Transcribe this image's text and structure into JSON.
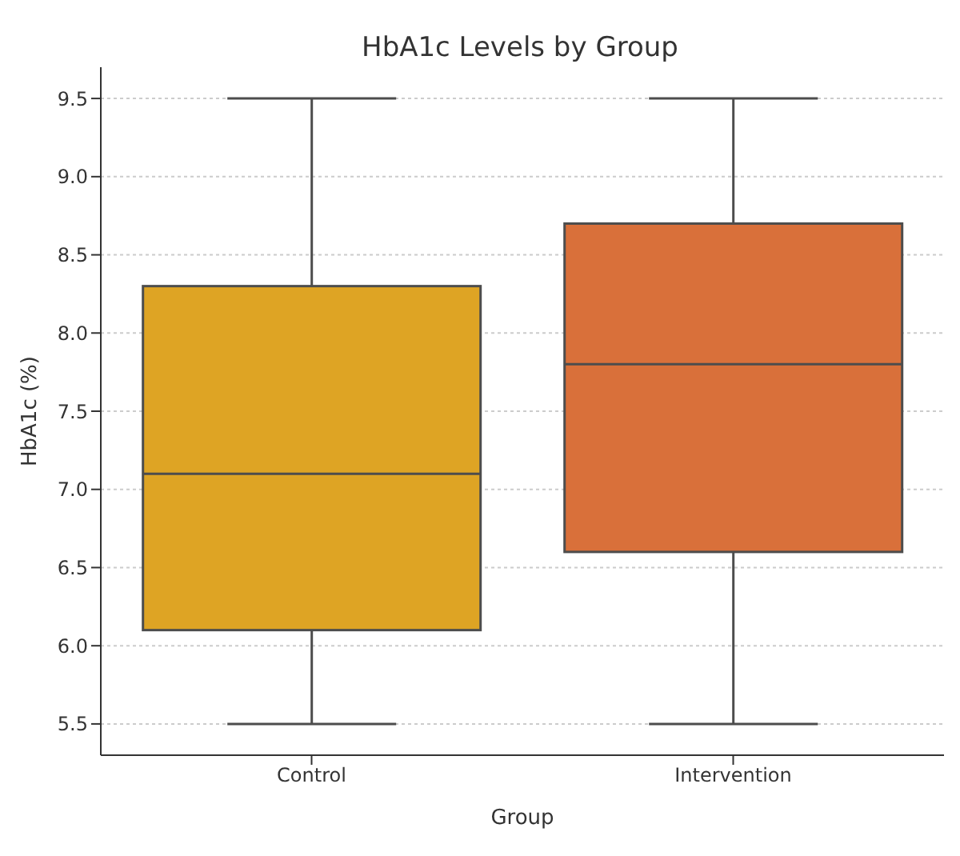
{
  "chart_data": {
    "type": "box",
    "title": "HbA1c Levels by Group",
    "xlabel": "Group",
    "ylabel": "HbA1c (%)",
    "categories": [
      "Control",
      "Intervention"
    ],
    "colors": [
      "#dea424",
      "#d9703a"
    ],
    "boxes": [
      {
        "low": 5.5,
        "q1": 6.1,
        "median": 7.1,
        "q3": 8.3,
        "high": 9.5
      },
      {
        "low": 5.5,
        "q1": 6.6,
        "median": 7.8,
        "q3": 8.7,
        "high": 9.5
      }
    ],
    "ylim": [
      5.3,
      9.7
    ],
    "yticks": [
      5.5,
      {
        "value": 6,
        "label": "6.0"
      },
      6.5,
      {
        "value": 7,
        "label": "7.0"
      },
      7.5,
      {
        "value": 8,
        "label": "8.0"
      },
      8.5,
      {
        "value": 9,
        "label": "9.0"
      },
      9.5
    ],
    "grid": "y"
  }
}
